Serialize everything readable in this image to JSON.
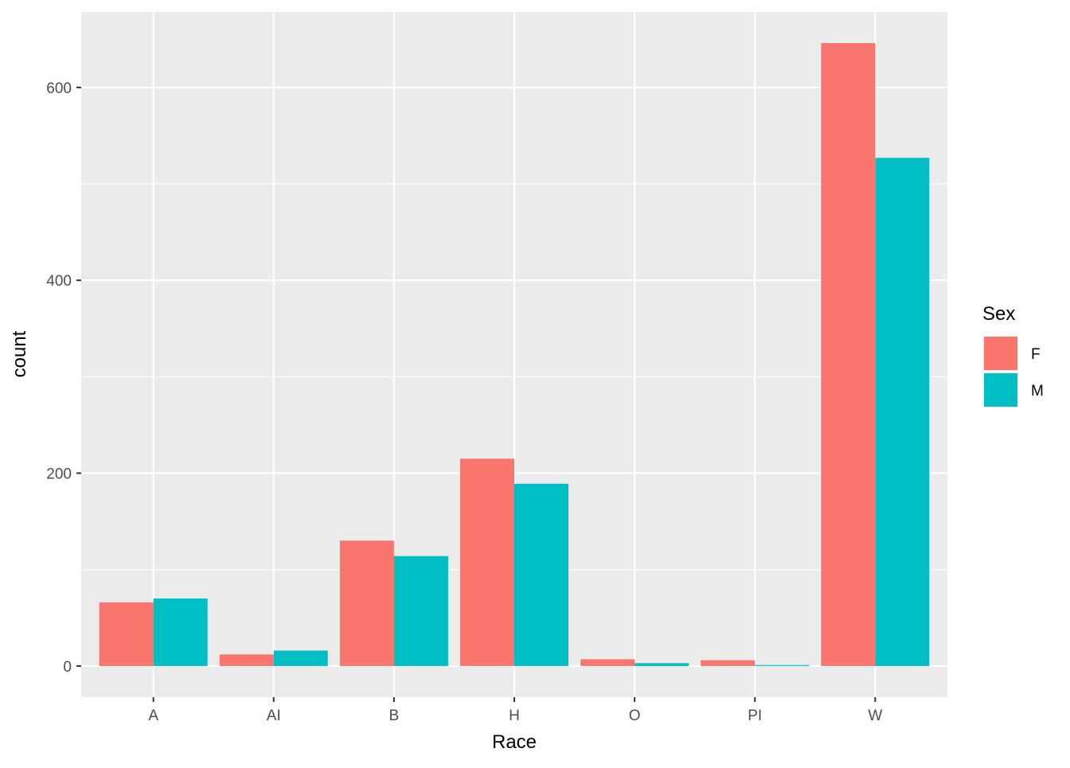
{
  "chart_data": {
    "type": "bar",
    "title": "",
    "xlabel": "Race",
    "ylabel": "count",
    "categories": [
      "A",
      "AI",
      "B",
      "H",
      "O",
      "PI",
      "W"
    ],
    "series": [
      {
        "name": "F",
        "color": "#F8766D",
        "values": [
          66,
          12,
          130,
          215,
          7,
          6,
          646
        ]
      },
      {
        "name": "M",
        "color": "#00BFC4",
        "values": [
          70,
          16,
          114,
          189,
          3,
          1,
          527
        ]
      }
    ],
    "ylim": [
      -32.3,
      678.3
    ],
    "y_ticks": [
      0,
      200,
      400,
      600
    ],
    "grid": true,
    "panel_background": "#EBEBEB",
    "grid_color": "#FFFFFF",
    "legend": {
      "title": "Sex",
      "position": "right"
    }
  }
}
